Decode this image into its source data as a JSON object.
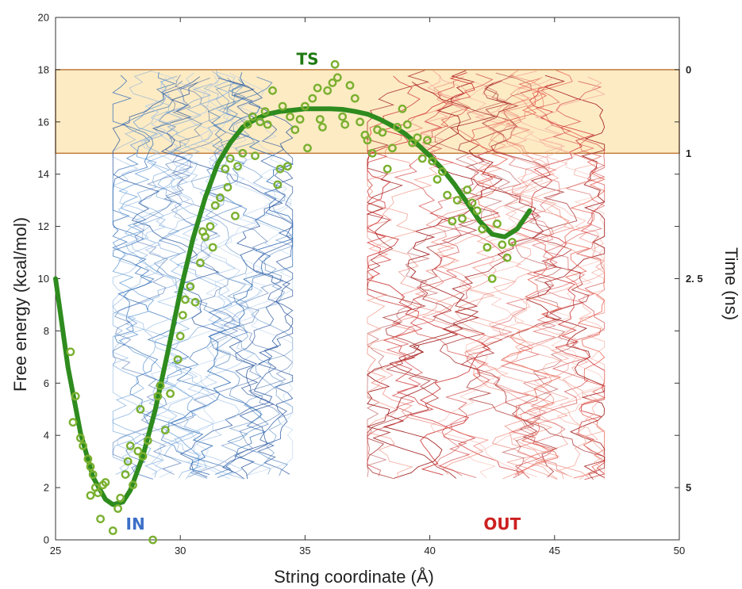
{
  "chart_data": {
    "type": "line",
    "title": "",
    "xlabel": "String coordinate (Å)",
    "ylabel": "Free energy (kcal/mol)",
    "y2label": "Time (ns)",
    "xlim": [
      25,
      50
    ],
    "ylim": [
      0,
      20
    ],
    "x_ticks": [
      "25",
      "30",
      "35",
      "40",
      "45",
      "50"
    ],
    "y_ticks": [
      "0",
      "2",
      "4",
      "6",
      "8",
      "10",
      "12",
      "14",
      "16",
      "18",
      "20"
    ],
    "y2_ticks": [
      {
        "label": "0",
        "at": 18
      },
      {
        "label": "1",
        "at": 14.8
      },
      {
        "label": "2. 5",
        "at": 10
      },
      {
        "label": "5",
        "at": 2
      }
    ],
    "highlight_band": {
      "y": [
        14.8,
        18
      ],
      "color": "#fdebc4",
      "edge": "#c07a3a"
    },
    "fit_curve": {
      "color": "#2e8b1e",
      "x": [
        25,
        25.5,
        26,
        26.5,
        27,
        27.3,
        27.7,
        28,
        28.5,
        29,
        29.5,
        30,
        30.5,
        31,
        31.5,
        32,
        32.5,
        33,
        33.5,
        34,
        34.5,
        35,
        35.5,
        36,
        36.5,
        37,
        37.5,
        38,
        38.5,
        39,
        39.5,
        40,
        40.5,
        41,
        41.5,
        42,
        42.5,
        43,
        43.5,
        44
      ],
      "y": [
        10,
        6.6,
        4.1,
        2.4,
        1.55,
        1.35,
        1.45,
        1.9,
        3.2,
        5.0,
        7.2,
        9.5,
        11.5,
        13.1,
        14.4,
        15.2,
        15.8,
        16.1,
        16.3,
        16.4,
        16.45,
        16.5,
        16.5,
        16.5,
        16.48,
        16.4,
        16.3,
        16.1,
        15.85,
        15.55,
        15.15,
        14.7,
        14.2,
        13.6,
        12.9,
        12.2,
        11.7,
        11.6,
        11.9,
        12.6
      ]
    },
    "scatter": {
      "color": "#7ab030",
      "points": [
        [
          25.6,
          7.2
        ],
        [
          25.8,
          5.5
        ],
        [
          25.7,
          4.5
        ],
        [
          26,
          3.9
        ],
        [
          26.1,
          3.6
        ],
        [
          26.3,
          3.1
        ],
        [
          26.4,
          2.8
        ],
        [
          26.5,
          2.5
        ],
        [
          26.6,
          2.0
        ],
        [
          26.4,
          1.7
        ],
        [
          26.7,
          1.8
        ],
        [
          26.9,
          2.1
        ],
        [
          27.0,
          2.2
        ],
        [
          26.8,
          0.8
        ],
        [
          27.3,
          0.35
        ],
        [
          27.5,
          1.2
        ],
        [
          27.6,
          1.6
        ],
        [
          27.8,
          2.5
        ],
        [
          27.9,
          3.0
        ],
        [
          28.1,
          2.1
        ],
        [
          28.0,
          3.6
        ],
        [
          28.3,
          3.4
        ],
        [
          28.5,
          3.2
        ],
        [
          28.7,
          3.8
        ],
        [
          28.4,
          5.0
        ],
        [
          28.9,
          0.0
        ],
        [
          29.1,
          5.5
        ],
        [
          29.2,
          5.9
        ],
        [
          29.4,
          4.2
        ],
        [
          29.6,
          5.6
        ],
        [
          29.9,
          6.9
        ],
        [
          30.0,
          7.8
        ],
        [
          30.1,
          8.6
        ],
        [
          30.2,
          9.2
        ],
        [
          30.4,
          9.7
        ],
        [
          30.6,
          9.1
        ],
        [
          30.8,
          10.6
        ],
        [
          30.9,
          11.8
        ],
        [
          31.0,
          11.6
        ],
        [
          31.2,
          12.0
        ],
        [
          31.3,
          11.2
        ],
        [
          31.4,
          12.8
        ],
        [
          31.6,
          13.1
        ],
        [
          31.8,
          14.2
        ],
        [
          31.9,
          13.5
        ],
        [
          32.0,
          14.6
        ],
        [
          32.2,
          12.4
        ],
        [
          32.3,
          14.3
        ],
        [
          32.5,
          14.8
        ],
        [
          32.7,
          15.9
        ],
        [
          32.9,
          16.2
        ],
        [
          33.0,
          14.7
        ],
        [
          33.2,
          16.0
        ],
        [
          33.4,
          16.4
        ],
        [
          33.5,
          15.9
        ],
        [
          33.7,
          17.2
        ],
        [
          33.9,
          13.6
        ],
        [
          34.0,
          14.2
        ],
        [
          34.1,
          16.6
        ],
        [
          34.3,
          14.3
        ],
        [
          34.4,
          16.2
        ],
        [
          34.6,
          15.7
        ],
        [
          34.8,
          16.1
        ],
        [
          35.0,
          16.6
        ],
        [
          35.1,
          15.0
        ],
        [
          35.3,
          16.9
        ],
        [
          35.5,
          17.3
        ],
        [
          35.6,
          16.1
        ],
        [
          35.7,
          15.8
        ],
        [
          35.9,
          17.2
        ],
        [
          36.1,
          17.5
        ],
        [
          36.2,
          18.2
        ],
        [
          36.3,
          17.7
        ],
        [
          36.5,
          16.2
        ],
        [
          36.6,
          15.9
        ],
        [
          36.8,
          17.4
        ],
        [
          37.0,
          16.9
        ],
        [
          37.2,
          16.0
        ],
        [
          37.4,
          15.5
        ],
        [
          37.5,
          15.3
        ],
        [
          37.7,
          14.8
        ],
        [
          37.9,
          15.7
        ],
        [
          38.1,
          15.6
        ],
        [
          38.3,
          14.2
        ],
        [
          38.5,
          15.0
        ],
        [
          38.7,
          15.8
        ],
        [
          38.9,
          16.5
        ],
        [
          39.1,
          15.9
        ],
        [
          39.3,
          15.2
        ],
        [
          39.5,
          15.4
        ],
        [
          39.7,
          14.6
        ],
        [
          39.9,
          15.3
        ],
        [
          40.1,
          14.5
        ],
        [
          40.3,
          13.8
        ],
        [
          40.5,
          14.1
        ],
        [
          40.7,
          13.2
        ],
        [
          40.9,
          12.2
        ],
        [
          41.1,
          13.0
        ],
        [
          41.3,
          12.3
        ],
        [
          41.5,
          13.4
        ],
        [
          41.7,
          12.9
        ],
        [
          41.9,
          12.6
        ],
        [
          42.1,
          11.9
        ],
        [
          42.3,
          11.2
        ],
        [
          42.5,
          10.0
        ],
        [
          42.7,
          12.1
        ],
        [
          42.9,
          11.3
        ],
        [
          43.1,
          10.8
        ],
        [
          43.3,
          11.4
        ]
      ]
    },
    "trajectories": {
      "in_colors": [
        "#1f4e9a",
        "#2f6db5",
        "#6aa0d8",
        "#a9c8ea"
      ],
      "out_colors": [
        "#a11d1d",
        "#cc2e2e",
        "#e86a5a",
        "#f4a79a"
      ]
    },
    "annotations": [
      {
        "text": "TS",
        "x": 35.1,
        "y": 18.4,
        "color": "#1f7a12"
      },
      {
        "text": "IN",
        "x": 28.2,
        "y": 0.6,
        "color": "#3b6fc7"
      },
      {
        "text": "OUT",
        "x": 42.9,
        "y": 0.6,
        "color": "#cc2020"
      }
    ]
  }
}
